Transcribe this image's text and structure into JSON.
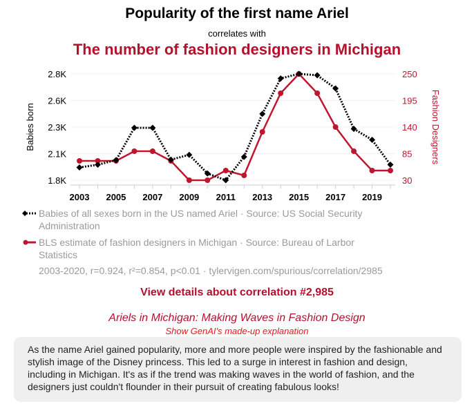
{
  "header": {
    "title": "Popularity of the first name Ariel",
    "subtitle": "correlates with",
    "title2": "The number of fashion designers in Michigan"
  },
  "chart_data": {
    "type": "line",
    "x": [
      2003,
      2004,
      2005,
      2006,
      2007,
      2008,
      2009,
      2010,
      2011,
      2012,
      2013,
      2014,
      2015,
      2016,
      2017,
      2018,
      2019,
      2020
    ],
    "x_tick_labels": [
      "2003",
      "2005",
      "2007",
      "2009",
      "2011",
      "2013",
      "2015",
      "2017",
      "2019"
    ],
    "series": [
      {
        "name": "Babies of all sexes born in the US named Ariel",
        "axis": "left",
        "color": "#000000",
        "style": "dotted",
        "marker": "diamond",
        "values": [
          1920,
          1946,
          1989,
          2293,
          2293,
          1993,
          2039,
          1863,
          1800,
          2020,
          2424,
          2757,
          2800,
          2787,
          2663,
          2283,
          2180,
          1946
        ]
      },
      {
        "name": "BLS estimate of fashion designers in Michigan",
        "axis": "right",
        "color": "#c0152f",
        "style": "solid",
        "marker": "circle",
        "values": [
          70,
          70,
          70,
          90,
          90,
          70,
          30,
          30,
          50,
          40,
          130,
          210,
          250,
          210,
          140,
          90,
          50,
          50
        ]
      }
    ],
    "ylabel": "Babies born",
    "y2label": "Fashion Designers",
    "ylim": [
      1800,
      2800
    ],
    "y_tick_labels": [
      "1.8K",
      "2.1K",
      "2.3K",
      "2.6K",
      "2.8K"
    ],
    "y2lim": [
      30,
      250
    ],
    "y2_tick_labels": [
      "30",
      "85",
      "140",
      "195",
      "250"
    ],
    "grid": true
  },
  "legend": {
    "s1": "Babies of all sexes born in the US named Ariel · Source: US Social Security Administration",
    "s2": "BLS estimate of fashion designers in Michigan · Source: Bureau of Larbor Statistics",
    "stats": "2003-2020, r=0.924, r²=0.854, p<0.01 · tylervigen.com/spurious/correlation/2985"
  },
  "link": "View details about correlation #2,985",
  "genai": {
    "title": "Ariels in Michigan: Making Waves in Fashion Design",
    "show": "Show GenAI's made-up explanation",
    "text": "As the name Ariel gained popularity, more and more people were inspired by the fashionable and stylish image of the Disney princess. This led to a surge in interest in fashion and design, including in Michigan. It's as if the trend was making waves in the world of fashion, and the designers just couldn't flounder in their pursuit of creating fabulous looks!"
  }
}
